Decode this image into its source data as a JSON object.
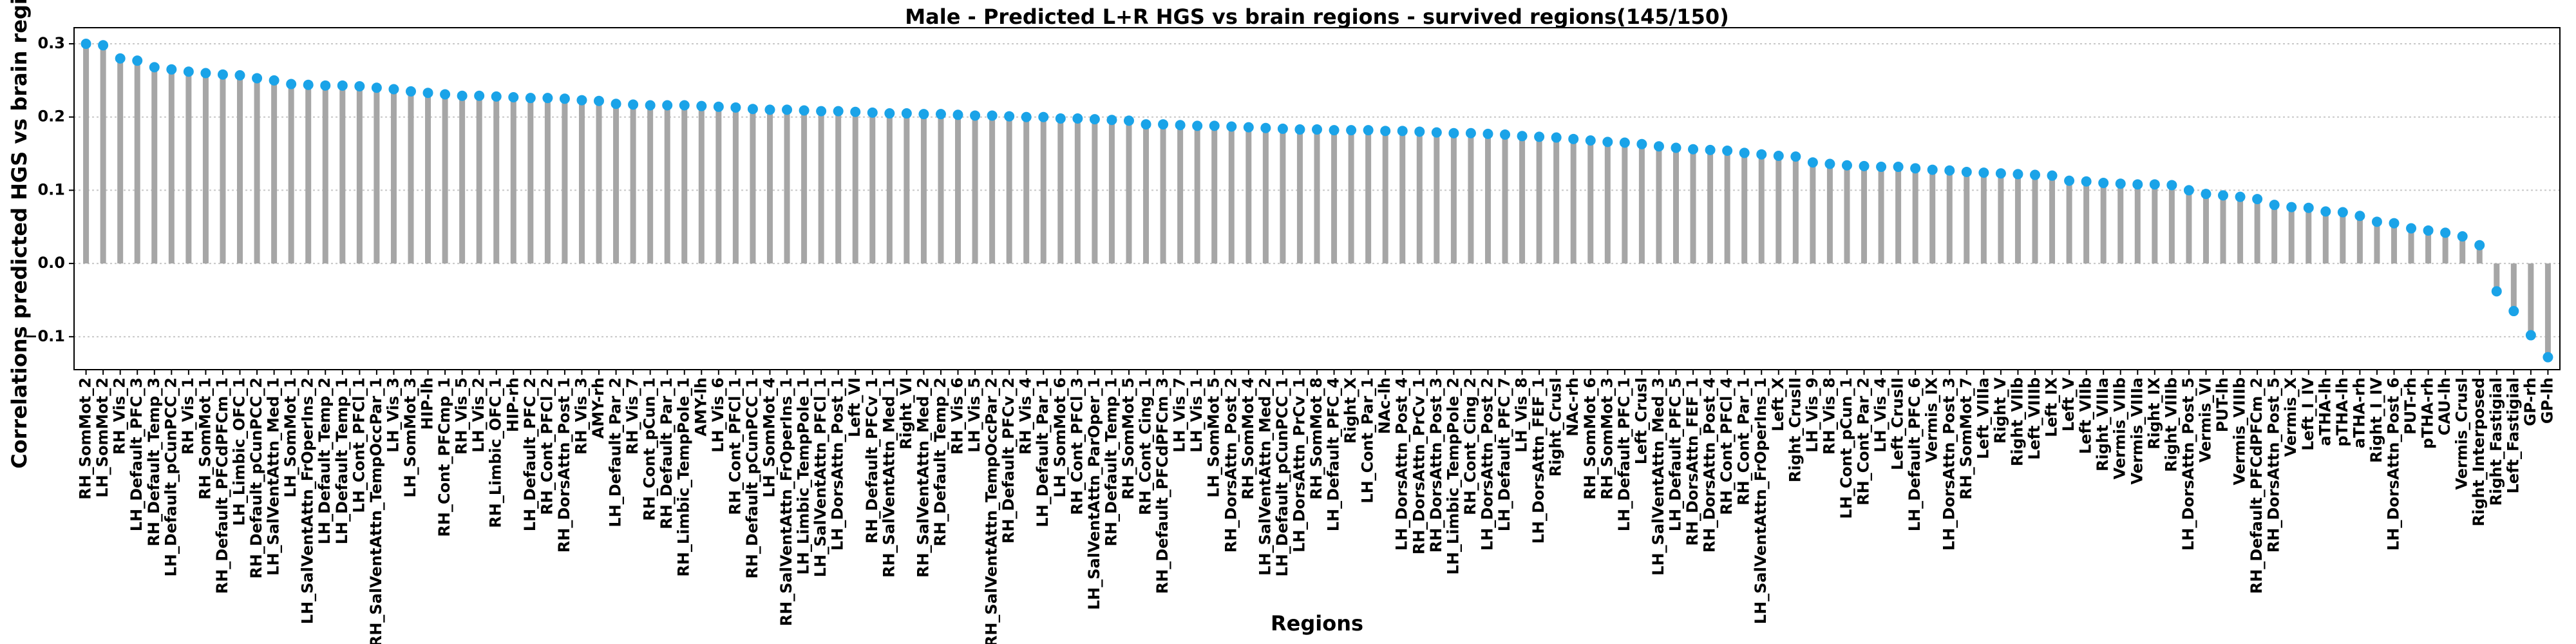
{
  "chart_data": {
    "type": "lollipop",
    "title": "Male - Predicted L+R HGS vs brain regions - survived regions(145/150)",
    "x_label": "Regions",
    "y_label": "Correlations predicted HGS vs brain regions",
    "categories": [
      "RH_SomMot_2",
      "LH_SomMot_2",
      "RH_Vis_2",
      "LH_Default_PFC_3",
      "RH_Default_Temp_3",
      "LH_Default_pCunPCC_2",
      "RH_Vis_1",
      "RH_SomMot_1",
      "RH_Default_PFCdPFCm_1",
      "LH_Limbic_OFC_1",
      "RH_Default_pCunPCC_2",
      "LH_SalVentAttn_Med_1",
      "LH_SomMot_1",
      "LH_SalVentAttn_FrOperIns_2",
      "LH_Default_Temp_2",
      "LH_Default_Temp_1",
      "LH_Cont_PFCl_1",
      "RH_SalVentAttn_TempOccPar_1",
      "LH_Vis_3",
      "LH_SomMot_3",
      "HIP-lh",
      "RH_Cont_PFCmp_1",
      "RH_Vis_5",
      "LH_Vis_2",
      "RH_Limbic_OFC_1",
      "HIP-rh",
      "LH_Default_PFC_2",
      "RH_Cont_PFCl_2",
      "RH_DorsAttn_Post_1",
      "RH_Vis_3",
      "AMY-rh",
      "LH_Default_Par_2",
      "RH_Vis_7",
      "RH_Cont_pCun_1",
      "RH_Default_Par_1",
      "RH_Limbic_TempPole_1",
      "AMY-lh",
      "LH_Vis_6",
      "RH_Cont_PFCl_1",
      "RH_Default_pCunPCC_1",
      "LH_SomMot_4",
      "RH_SalVentAttn_FrOperIns_1",
      "LH_Limbic_TempPole_1",
      "LH_SalVentAttn_PFCl_1",
      "LH_DorsAttn_Post_1",
      "Left_VI",
      "RH_Default_PFCv_1",
      "RH_SalVentAttn_Med_1",
      "Right_VI",
      "RH_SalVentAttn_Med_2",
      "RH_Default_Temp_2",
      "RH_Vis_6",
      "LH_Vis_5",
      "RH_SalVentAttn_TempOccPar_2",
      "RH_Default_PFCv_2",
      "RH_Vis_4",
      "LH_Default_Par_1",
      "LH_SomMot_6",
      "RH_Cont_PFCl_3",
      "LH_SalVentAttn_ParOper_1",
      "RH_Default_Temp_1",
      "RH_SomMot_5",
      "RH_Cont_Cing_1",
      "RH_Default_PFCdPFCm_3",
      "LH_Vis_7",
      "LH_Vis_1",
      "LH_SomMot_5",
      "RH_DorsAttn_Post_2",
      "RH_SomMot_4",
      "LH_SalVentAttn_Med_2",
      "LH_Default_pCunPCC_1",
      "LH_DorsAttn_PrCv_1",
      "RH_SomMot_8",
      "LH_Default_PFC_4",
      "Right_X",
      "LH_Cont_Par_1",
      "NAc-lh",
      "LH_DorsAttn_Post_4",
      "RH_DorsAttn_PrCv_1",
      "RH_DorsAttn_Post_3",
      "LH_Limbic_TempPole_2",
      "RH_Cont_Cing_2",
      "LH_DorsAttn_Post_2",
      "LH_Default_PFC_7",
      "LH_Vis_8",
      "LH_DorsAttn_FEF_1",
      "Right_CrusI",
      "NAc-rh",
      "RH_SomMot_6",
      "RH_SomMot_3",
      "LH_Default_PFC_1",
      "Left_CrusI",
      "LH_SalVentAttn_Med_3",
      "LH_Default_PFC_5",
      "RH_DorsAttn_FEF_1",
      "RH_DorsAttn_Post_4",
      "RH_Cont_PFCl_4",
      "RH_Cont_Par_1",
      "LH_SalVentAttn_FrOperIns_1",
      "Left_X",
      "Right_CrusII",
      "LH_Vis_9",
      "RH_Vis_8",
      "LH_Cont_pCun_1",
      "RH_Cont_Par_2",
      "LH_Vis_4",
      "Left_CrusII",
      "LH_Default_PFC_6",
      "Vermis_IX",
      "LH_DorsAttn_Post_3",
      "RH_SomMot_7",
      "Left_VIIIa",
      "Right_V",
      "Right_VIIb",
      "Left_VIIIb",
      "Left_IX",
      "Left_V",
      "Left_VIIb",
      "Right_VIIIa",
      "Vermis_VIIb",
      "Vermis_VIIIa",
      "Right_IX",
      "Right_VIIIb",
      "LH_DorsAttn_Post_5",
      "Vermis_VI",
      "PUT-lh",
      "Vermis_VIIIb",
      "RH_Default_PFCdPFCm_2",
      "RH_DorsAttn_Post_5",
      "Vermis_X",
      "Left_I_IV",
      "aTHA-lh",
      "pTHA-lh",
      "aTHA-rh",
      "Right_I_IV",
      "LH_DorsAttn_Post_6",
      "PUT-rh",
      "pTHA-rh",
      "CAU-lh",
      "Vermis_CrusI",
      "Right_Interposed",
      "Right_Fastigial",
      "Left_Fastigial",
      "GP-rh",
      "GP-lh"
    ],
    "values": [
      0.3,
      0.298,
      0.28,
      0.277,
      0.268,
      0.265,
      0.262,
      0.26,
      0.258,
      0.257,
      0.253,
      0.25,
      0.245,
      0.244,
      0.243,
      0.243,
      0.242,
      0.24,
      0.238,
      0.235,
      0.233,
      0.231,
      0.229,
      0.229,
      0.228,
      0.227,
      0.226,
      0.226,
      0.225,
      0.223,
      0.222,
      0.218,
      0.217,
      0.216,
      0.216,
      0.216,
      0.215,
      0.214,
      0.213,
      0.211,
      0.21,
      0.21,
      0.209,
      0.208,
      0.208,
      0.207,
      0.206,
      0.205,
      0.205,
      0.204,
      0.204,
      0.203,
      0.202,
      0.202,
      0.201,
      0.2,
      0.2,
      0.198,
      0.198,
      0.197,
      0.196,
      0.195,
      0.19,
      0.19,
      0.189,
      0.188,
      0.188,
      0.187,
      0.186,
      0.185,
      0.184,
      0.183,
      0.183,
      0.182,
      0.182,
      0.182,
      0.181,
      0.181,
      0.18,
      0.179,
      0.178,
      0.178,
      0.177,
      0.176,
      0.174,
      0.173,
      0.172,
      0.17,
      0.168,
      0.166,
      0.165,
      0.163,
      0.16,
      0.158,
      0.156,
      0.155,
      0.154,
      0.151,
      0.149,
      0.147,
      0.146,
      0.138,
      0.136,
      0.134,
      0.133,
      0.132,
      0.132,
      0.13,
      0.128,
      0.127,
      0.125,
      0.124,
      0.123,
      0.122,
      0.121,
      0.12,
      0.113,
      0.112,
      0.11,
      0.109,
      0.108,
      0.108,
      0.107,
      0.1,
      0.095,
      0.093,
      0.091,
      0.088,
      0.08,
      0.077,
      0.076,
      0.071,
      0.07,
      0.065,
      0.057,
      0.055,
      0.048,
      0.045,
      0.042,
      0.037,
      0.025,
      -0.038,
      -0.065,
      -0.098,
      -0.128
    ],
    "stem_color": "#a6a6a6",
    "color": "#1aa3e8",
    "ylim": [
      -0.145,
      0.322
    ],
    "yticks": [
      {
        "value": -0.1,
        "label": "−0.1"
      },
      {
        "value": 0,
        "label": "0.0"
      },
      0.1,
      0.2,
      0.3
    ],
    "grid": true
  }
}
